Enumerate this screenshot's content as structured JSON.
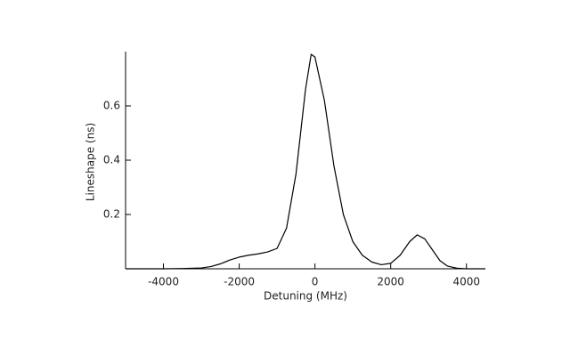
{
  "chart_data": {
    "type": "line",
    "x_label": "Detuning (MHz)",
    "y_label": "Lineshape (ns)",
    "series": [
      {
        "color": "#000000",
        "x": [
          -5000,
          -4000,
          -3500,
          -3000,
          -2750,
          -2500,
          -2250,
          -2000,
          -1750,
          -1500,
          -1250,
          -1000,
          -750,
          -500,
          -250,
          -100,
          0,
          250,
          500,
          750,
          1000,
          1250,
          1500,
          1750,
          2000,
          2250,
          2500,
          2700,
          2900,
          3100,
          3300,
          3500,
          3750,
          4000,
          4500
        ],
        "values": [
          0,
          0,
          0.001,
          0.003,
          0.008,
          0.018,
          0.032,
          0.043,
          0.05,
          0.055,
          0.062,
          0.075,
          0.15,
          0.35,
          0.66,
          0.79,
          0.78,
          0.62,
          0.38,
          0.2,
          0.1,
          0.05,
          0.025,
          0.015,
          0.02,
          0.05,
          0.1,
          0.125,
          0.11,
          0.07,
          0.03,
          0.01,
          0.002,
          0,
          0
        ]
      }
    ],
    "xlim": [
      -5000,
      4500
    ],
    "xticks": [
      -4000,
      -2000,
      0,
      2000,
      4000
    ],
    "ylim": [
      0,
      0.8
    ],
    "yticks": [
      0.2,
      0.4,
      0.6
    ]
  }
}
